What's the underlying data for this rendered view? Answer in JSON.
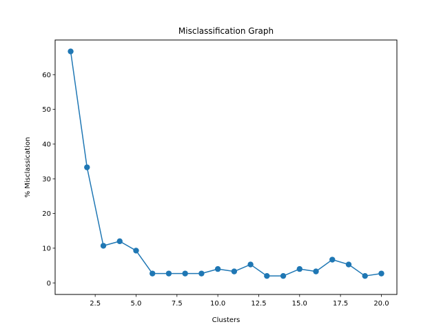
{
  "chart_data": {
    "type": "line",
    "title": "Misclassification Graph",
    "xlabel": "Clusters",
    "ylabel": "% Misclassication",
    "xlim": [
      0.05,
      20.95
    ],
    "ylim": [
      -3.33,
      69.99
    ],
    "xticks": [
      2.5,
      5.0,
      7.5,
      10.0,
      12.5,
      15.0,
      17.5,
      20.0
    ],
    "xtick_labels": [
      "2.5",
      "5.0",
      "7.5",
      "10.0",
      "12.5",
      "15.0",
      "17.5",
      "20.0"
    ],
    "yticks": [
      0,
      10,
      20,
      30,
      40,
      50,
      60
    ],
    "ytick_labels": [
      "0",
      "10",
      "20",
      "30",
      "40",
      "50",
      "60"
    ],
    "grid": false,
    "series": [
      {
        "color": "#1f77b4",
        "marker": "circle",
        "x": [
          1,
          2,
          3,
          4,
          5,
          6,
          7,
          8,
          9,
          10,
          11,
          12,
          13,
          14,
          15,
          16,
          17,
          18,
          19,
          20
        ],
        "y": [
          66.7,
          33.3,
          10.7,
          12.0,
          9.3,
          2.7,
          2.7,
          2.7,
          2.7,
          4.0,
          3.3,
          5.3,
          2.0,
          2.0,
          4.0,
          3.3,
          6.7,
          5.3,
          2.0,
          2.7
        ]
      }
    ]
  }
}
